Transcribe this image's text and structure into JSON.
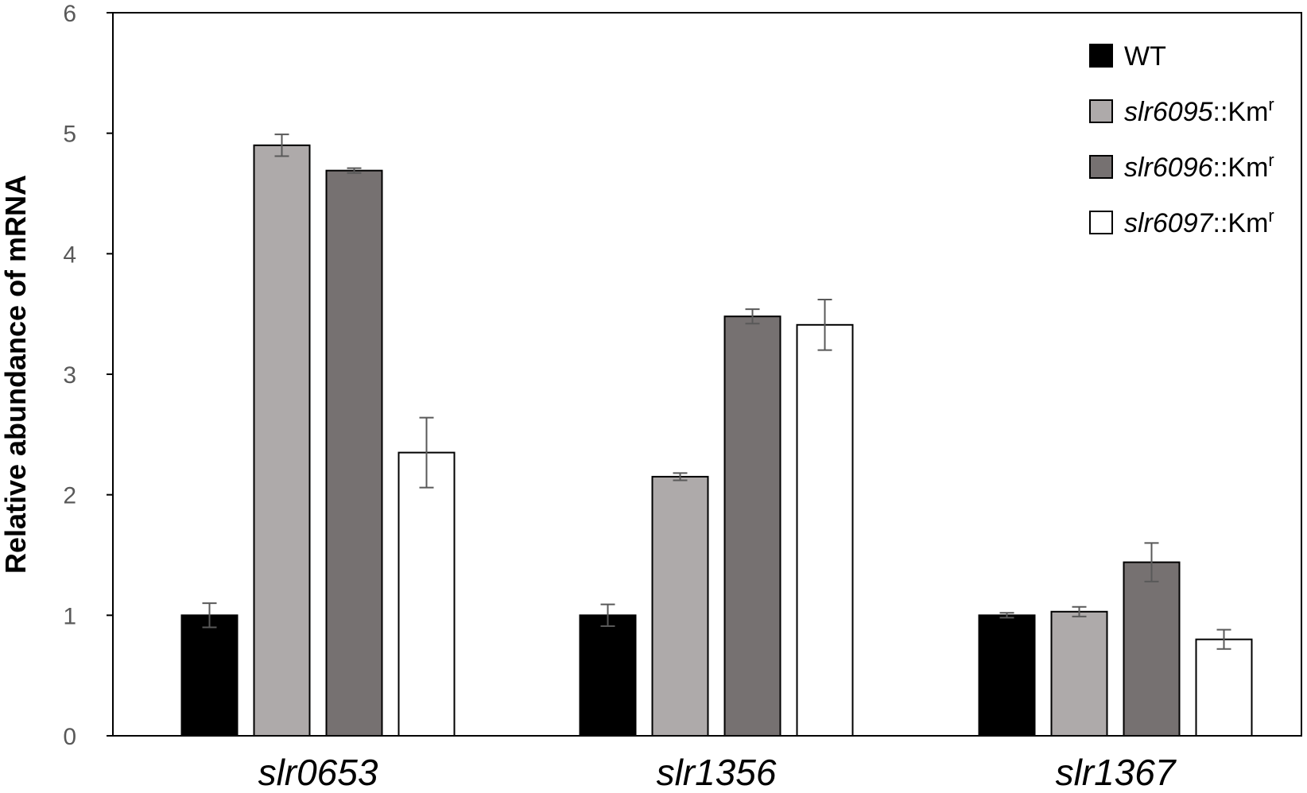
{
  "chart_data": {
    "type": "bar",
    "ylabel": "Relative abundance of mRNA",
    "xlabel": "",
    "ylim": [
      0,
      6
    ],
    "yticks": [
      0,
      1,
      2,
      3,
      4,
      5,
      6
    ],
    "grid": false,
    "legend_position": "top-right",
    "categories": [
      "slr0653",
      "slr1356",
      "slr1367"
    ],
    "series": [
      {
        "name_italic": "",
        "name_rest": "WT",
        "name_sup": "",
        "color": "#000000",
        "values": [
          1.0,
          1.0,
          1.0
        ],
        "errors": [
          0.1,
          0.09,
          0.02
        ]
      },
      {
        "name_italic": "slr6095",
        "name_rest": "::Km",
        "name_sup": "r",
        "color": "#aeaaaa",
        "values": [
          4.9,
          2.15,
          1.03
        ],
        "errors": [
          0.09,
          0.03,
          0.04
        ]
      },
      {
        "name_italic": "slr6096",
        "name_rest": "::Km",
        "name_sup": "r",
        "color": "#767171",
        "values": [
          4.69,
          3.48,
          1.44
        ],
        "errors": [
          0.02,
          0.06,
          0.16
        ]
      },
      {
        "name_italic": "slr6097",
        "name_rest": "::Km",
        "name_sup": "r",
        "color": "#ffffff",
        "values": [
          2.35,
          3.41,
          0.8
        ],
        "errors": [
          0.29,
          0.21,
          0.08
        ]
      }
    ]
  }
}
